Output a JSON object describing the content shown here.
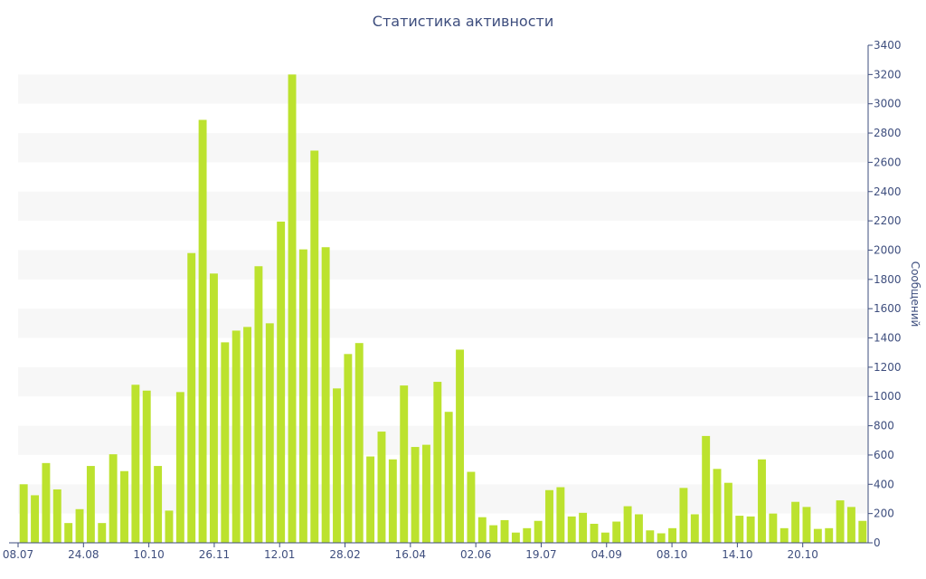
{
  "chart_data": {
    "type": "bar",
    "title": "Статистика активности",
    "xlabel": "",
    "ylabel": "Сообщений",
    "ylim": [
      0,
      3400
    ],
    "y_ticks": [
      0,
      200,
      400,
      600,
      800,
      1000,
      1200,
      1400,
      1600,
      1800,
      2000,
      2200,
      2400,
      2600,
      2800,
      3000,
      3200,
      3400
    ],
    "y_axis_position": "right",
    "x_tick_labels": [
      "08.07",
      "24.08",
      "10.10",
      "26.11",
      "12.01",
      "28.02",
      "16.04",
      "02.06",
      "19.07",
      "04.09",
      "08.10",
      "14.10",
      "20.10"
    ],
    "grid": "alternating horizontal bands",
    "series": [
      {
        "values": [
          400,
          325,
          545,
          365,
          135,
          230,
          525,
          135,
          605,
          490,
          1080,
          1040,
          525,
          220,
          1030,
          1980,
          2890,
          1840,
          1370,
          1450,
          1475,
          1890,
          1500,
          2195,
          3200,
          2005,
          2680,
          2020,
          1055,
          1290,
          1365,
          590,
          760,
          570,
          1075,
          655,
          670,
          1100,
          895,
          1320,
          485,
          175,
          120,
          155,
          70,
          100,
          150,
          360,
          380,
          180,
          205,
          130,
          70,
          145,
          250,
          195,
          85,
          65,
          100,
          375,
          195,
          730,
          505,
          410,
          185,
          180,
          570,
          200,
          100,
          280,
          245,
          95,
          100,
          290,
          245,
          150
        ]
      }
    ],
    "colors": {
      "bar": "#bce22e",
      "axis": "#3e4e7e",
      "band": "#f7f7f7"
    }
  }
}
